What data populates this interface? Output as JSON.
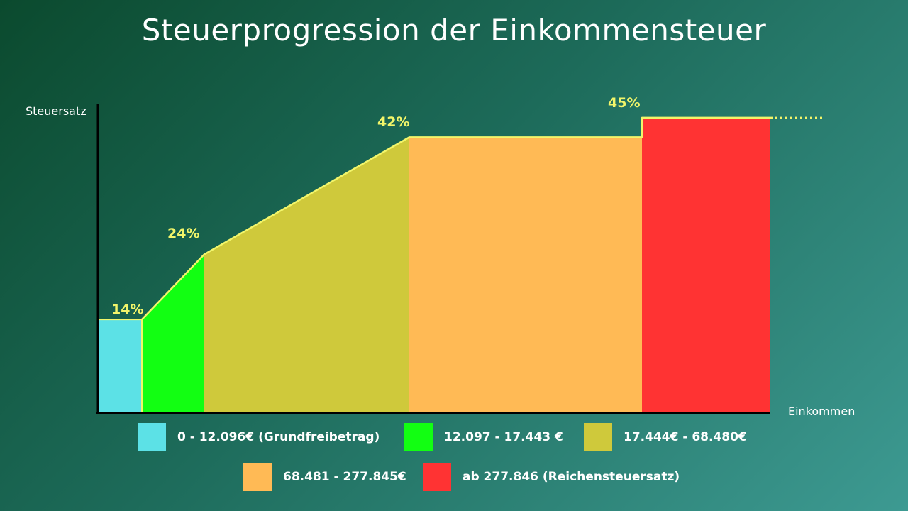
{
  "chart_data": {
    "type": "area",
    "title": "Steuerprogression der Einkommensteuer",
    "ylabel": "Steuersatz",
    "xlabel": "Einkommen",
    "segments": [
      {
        "label": "0 - 12.096€ (Grundfreibetrag)",
        "color": "#5ce1e6",
        "rate_start": 14,
        "rate_end": 14
      },
      {
        "label": "12.097 - 17.443 €",
        "color": "#12ff12",
        "rate_start": 14,
        "rate_end": 24
      },
      {
        "label": "17.444€ - 68.480€",
        "color": "#cfc93b",
        "rate_start": 24,
        "rate_end": 42
      },
      {
        "label": "68.481 - 277.845€",
        "color": "#ffba55",
        "rate_start": 42,
        "rate_end": 42
      },
      {
        "label": "ab 277.846 (Reichensteuersatz)",
        "color": "#ff3333",
        "rate_start": 45,
        "rate_end": 45
      }
    ],
    "rate_labels": [
      "14%",
      "24%",
      "42%",
      "45%"
    ],
    "line_color": "#f2f56a"
  }
}
